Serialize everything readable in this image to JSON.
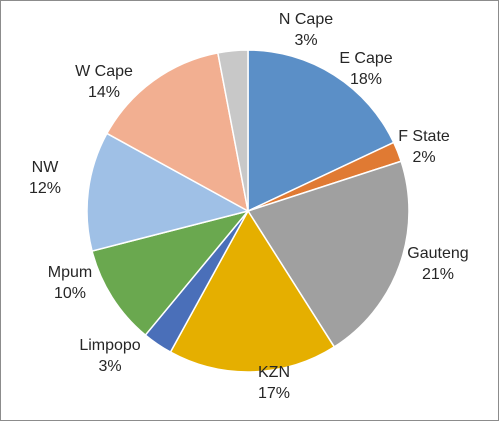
{
  "chart_data": {
    "type": "pie",
    "title": "",
    "start_angle_deg": 0,
    "direction": "clockwise",
    "slices": [
      {
        "label": "E Cape",
        "value": 18,
        "display": "18%",
        "color": "#5b8fc7"
      },
      {
        "label": "F State",
        "value": 2,
        "display": "2%",
        "color": "#e07a33"
      },
      {
        "label": "Gauteng",
        "value": 21,
        "display": "21%",
        "color": "#a0a0a0"
      },
      {
        "label": "KZN",
        "value": 17,
        "display": "17%",
        "color": "#e5af00"
      },
      {
        "label": "Limpopo",
        "value": 3,
        "display": "3%",
        "color": "#4a6fb9"
      },
      {
        "label": "Mpum",
        "value": 10,
        "display": "10%",
        "color": "#6aa84f"
      },
      {
        "label": "NW",
        "value": 12,
        "display": "12%",
        "color": "#9fc0e6"
      },
      {
        "label": "W Cape",
        "value": 14,
        "display": "14%",
        "color": "#f2af91"
      },
      {
        "label": "N Cape",
        "value": 3,
        "display": "3%",
        "color": "#c8c8c8"
      }
    ],
    "legend": "none",
    "data_labels": "outside-end"
  }
}
